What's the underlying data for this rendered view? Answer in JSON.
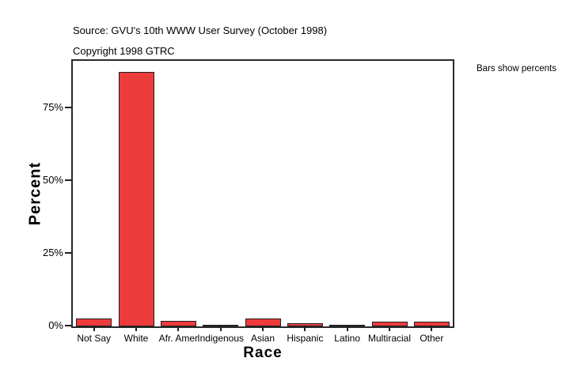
{
  "header": {
    "source_line": "Source: GVU's 10th WWW User Survey (October 1998)",
    "copyright_line": "Copyright 1998 GTRC"
  },
  "annotation": "Bars show percents",
  "chart_data": {
    "type": "bar",
    "title": "",
    "xlabel": "Race",
    "ylabel": "Percent",
    "categories": [
      "Not Say",
      "White",
      "Afr. Amer",
      "Indigenous",
      "Asian",
      "Hispanic",
      "Latino",
      "Multiracial",
      "Other"
    ],
    "values": [
      2.6,
      87.5,
      1.9,
      0.5,
      2.8,
      1.1,
      0.6,
      1.7,
      1.6
    ],
    "y_ticks": [
      "0%",
      "25%",
      "50%",
      "75%"
    ],
    "y_tick_values": [
      0,
      25,
      50,
      75
    ],
    "ylim": [
      0,
      91
    ],
    "grid": false,
    "legend": "none",
    "bar_color": "#ee3b3c",
    "bar_border_color": "#1f1f1f",
    "axis_color": "#2a2a2a"
  }
}
